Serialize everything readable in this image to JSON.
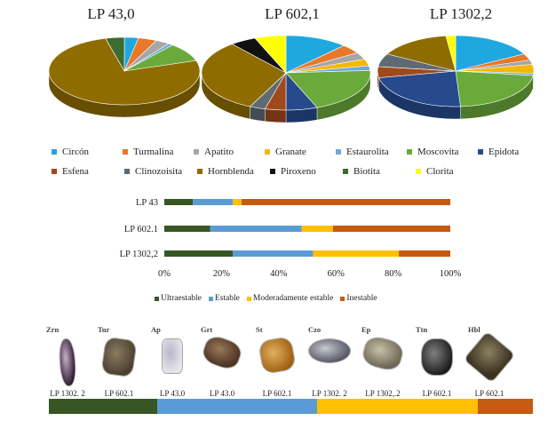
{
  "chart_data": [
    {
      "type": "pie",
      "title": "LP 43,0",
      "values": [
        {
          "label": "Circón",
          "value": 3
        },
        {
          "label": "Turmalina",
          "value": 4
        },
        {
          "label": "Apatito",
          "value": 3
        },
        {
          "label": "Granate",
          "value": 0
        },
        {
          "label": "Estaurolita",
          "value": 1
        },
        {
          "label": "Moscovita",
          "value": 9
        },
        {
          "label": "Epidota",
          "value": 0
        },
        {
          "label": "Esfena",
          "value": 0
        },
        {
          "label": "Clinozoisita",
          "value": 0
        },
        {
          "label": "Hornblenda",
          "value": 76
        },
        {
          "label": "Piroxeno",
          "value": 0
        },
        {
          "label": "Biotita",
          "value": 4
        },
        {
          "label": "Clorita",
          "value": 0
        }
      ]
    },
    {
      "type": "pie",
      "title": "LP 602,1",
      "values": [
        {
          "label": "Circón",
          "value": 12
        },
        {
          "label": "Turmalina",
          "value": 4
        },
        {
          "label": "Apatito",
          "value": 3
        },
        {
          "label": "Granate",
          "value": 3
        },
        {
          "label": "Estaurolita",
          "value": 2
        },
        {
          "label": "Moscovita",
          "value": 20
        },
        {
          "label": "Epidota",
          "value": 6
        },
        {
          "label": "Esfena",
          "value": 4
        },
        {
          "label": "Clinozoisita",
          "value": 3
        },
        {
          "label": "Hornblenda",
          "value": 32
        },
        {
          "label": "Piroxeno",
          "value": 5
        },
        {
          "label": "Biotita",
          "value": 0
        },
        {
          "label": "Clorita",
          "value": 6
        }
      ]
    },
    {
      "type": "pie",
      "title": "LP 1302,2",
      "values": [
        {
          "label": "Circón",
          "value": 17
        },
        {
          "label": "Turmalina",
          "value": 3
        },
        {
          "label": "Apatito",
          "value": 2
        },
        {
          "label": "Granate",
          "value": 4
        },
        {
          "label": "Estaurolita",
          "value": 1
        },
        {
          "label": "Moscovita",
          "value": 22
        },
        {
          "label": "Epidota",
          "value": 23
        },
        {
          "label": "Esfena",
          "value": 5
        },
        {
          "label": "Clinozoisita",
          "value": 6
        },
        {
          "label": "Hornblenda",
          "value": 15
        },
        {
          "label": "Piroxeno",
          "value": 0
        },
        {
          "label": "Biotita",
          "value": 0
        },
        {
          "label": "Clorita",
          "value": 2
        }
      ]
    },
    {
      "type": "bar",
      "orientation": "horizontal",
      "stacked": "percent",
      "categories": [
        "LP 43",
        "LP 602.1",
        "LP 1302,2"
      ],
      "series": [
        {
          "name": "Ultraestable",
          "values": [
            10,
            16,
            24
          ]
        },
        {
          "name": "Estable",
          "values": [
            14,
            32,
            28
          ]
        },
        {
          "name": "Moderadamente estable",
          "values": [
            3,
            11,
            30
          ]
        },
        {
          "name": "Inestable",
          "values": [
            73,
            41,
            18
          ]
        }
      ],
      "xticks": [
        "0%",
        "20%",
        "40%",
        "60%",
        "80%",
        "100%"
      ],
      "xlim": [
        0,
        100
      ],
      "legend": "bottom"
    }
  ],
  "legend": {
    "rows": [
      [
        "Circón",
        "Turmalina",
        "Apatito",
        "Granate",
        "Estaurolita",
        "Moscovita",
        "Epidota"
      ],
      [
        "Esfena",
        "Clinozoisita",
        "Hornblenda",
        "Piroxeno",
        "Biotita",
        "Clorita"
      ]
    ]
  },
  "colors": {
    "Circón": "#1fa7e0",
    "Turmalina": "#e8782a",
    "Apatito": "#a6a6a6",
    "Granate": "#f5b800",
    "Estaurolita": "#6fa8dc",
    "Moscovita": "#6aaa3a",
    "Epidota": "#264a8c",
    "Esfena": "#a0491b",
    "Clinozoisita": "#5f6a73",
    "Hornblenda": "#8f6c00",
    "Piroxeno": "#111111",
    "Biotita": "#3e6b2f",
    "Clorita": "#ffff00",
    "Ultraestable": "#375623",
    "Estable": "#5b9bd5",
    "Moderadamente estable": "#ffc000",
    "Inestable": "#c55a11"
  },
  "grains": [
    {
      "abbr": "Zrn",
      "sample": "LP 1302. 2"
    },
    {
      "abbr": "Tur",
      "sample": "LP 602.1"
    },
    {
      "abbr": "Ap",
      "sample": "LP 43.0"
    },
    {
      "abbr": "Grt",
      "sample": "LP 43.0"
    },
    {
      "abbr": "St",
      "sample": "LP 602.1"
    },
    {
      "abbr": "Czo",
      "sample": "LP 1302. 2"
    },
    {
      "abbr": "Ep",
      "sample": "LP 1302,.2"
    },
    {
      "abbr": "Ttn",
      "sample": "LP 602.1"
    },
    {
      "abbr": "Hbl",
      "sample": "LP 602.1"
    }
  ],
  "grain_bar": [
    "Ultraestable",
    "Estable",
    "Moderadamente estable",
    "Inestable"
  ]
}
